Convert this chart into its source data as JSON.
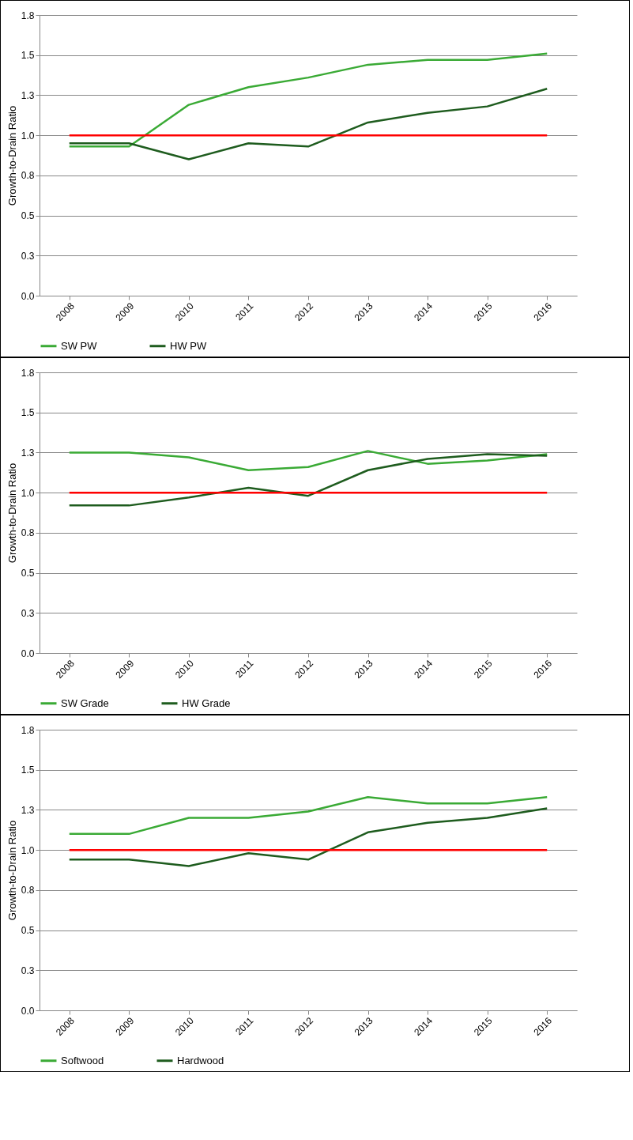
{
  "chart_data": [
    {
      "type": "line",
      "ylabel": "Growth-to-Drain Ratio",
      "categories": [
        "2008",
        "2009",
        "2010",
        "2011",
        "2012",
        "2013",
        "2014",
        "2015",
        "2016"
      ],
      "ylim": [
        0,
        1.75
      ],
      "yticks": [
        {
          "value": 0,
          "label": "0.0"
        },
        {
          "value": 0.25,
          "label": "0.3"
        },
        {
          "value": 0.5,
          "label": "0.5"
        },
        {
          "value": 0.75,
          "label": "0.8"
        },
        {
          "value": 1,
          "label": "1.0"
        },
        {
          "value": 1.25,
          "label": "1.3"
        },
        {
          "value": 1.5,
          "label": "1.5"
        },
        {
          "value": 1.75,
          "label": "1.8"
        }
      ],
      "grid": "y",
      "legend": "bottom",
      "series": [
        {
          "name": "SW PW",
          "color": "#3aaa35",
          "values": [
            0.93,
            0.93,
            1.19,
            1.3,
            1.36,
            1.44,
            1.47,
            1.47,
            1.51
          ]
        },
        {
          "name": "HW PW",
          "color": "#1e5c1e",
          "values": [
            0.95,
            0.95,
            0.85,
            0.95,
            0.93,
            1.08,
            1.14,
            1.18,
            1.29
          ]
        }
      ],
      "ref_lines": [
        {
          "axis": "y",
          "value": 1,
          "color": "#ff0000"
        }
      ]
    },
    {
      "type": "line",
      "ylabel": "Growth-to-Drain Ratio",
      "categories": [
        "2008",
        "2009",
        "2010",
        "2011",
        "2012",
        "2013",
        "2014",
        "2015",
        "2016"
      ],
      "ylim": [
        0,
        1.75
      ],
      "yticks": [
        {
          "value": 0,
          "label": "0.0"
        },
        {
          "value": 0.25,
          "label": "0.3"
        },
        {
          "value": 0.5,
          "label": "0.5"
        },
        {
          "value": 0.75,
          "label": "0.8"
        },
        {
          "value": 1,
          "label": "1.0"
        },
        {
          "value": 1.25,
          "label": "1.3"
        },
        {
          "value": 1.5,
          "label": "1.5"
        },
        {
          "value": 1.75,
          "label": "1.8"
        }
      ],
      "grid": "y",
      "legend": "bottom",
      "series": [
        {
          "name": "SW Grade",
          "color": "#3aaa35",
          "values": [
            1.25,
            1.25,
            1.22,
            1.14,
            1.16,
            1.26,
            1.18,
            1.2,
            1.24
          ]
        },
        {
          "name": "HW Grade",
          "color": "#1e5c1e",
          "values": [
            0.92,
            0.92,
            0.97,
            1.03,
            0.98,
            1.14,
            1.21,
            1.24,
            1.23
          ]
        }
      ],
      "ref_lines": [
        {
          "axis": "y",
          "value": 1,
          "color": "#ff0000"
        }
      ]
    },
    {
      "type": "line",
      "ylabel": "Growth-to-Drain Ratio",
      "categories": [
        "2008",
        "2009",
        "2010",
        "2011",
        "2012",
        "2013",
        "2014",
        "2015",
        "2016"
      ],
      "ylim": [
        0,
        1.75
      ],
      "yticks": [
        {
          "value": 0,
          "label": "0.0"
        },
        {
          "value": 0.25,
          "label": "0.3"
        },
        {
          "value": 0.5,
          "label": "0.5"
        },
        {
          "value": 0.75,
          "label": "0.8"
        },
        {
          "value": 1,
          "label": "1.0"
        },
        {
          "value": 1.25,
          "label": "1.3"
        },
        {
          "value": 1.5,
          "label": "1.5"
        },
        {
          "value": 1.75,
          "label": "1.8"
        }
      ],
      "grid": "y",
      "legend": "bottom",
      "series": [
        {
          "name": "Softwood",
          "color": "#3aaa35",
          "values": [
            1.1,
            1.1,
            1.2,
            1.2,
            1.24,
            1.33,
            1.29,
            1.29,
            1.33
          ]
        },
        {
          "name": "Hardwood",
          "color": "#1e5c1e",
          "values": [
            0.94,
            0.94,
            0.9,
            0.98,
            0.94,
            1.11,
            1.17,
            1.2,
            1.26
          ]
        }
      ],
      "ref_lines": [
        {
          "axis": "y",
          "value": 1,
          "color": "#ff0000"
        }
      ]
    }
  ]
}
